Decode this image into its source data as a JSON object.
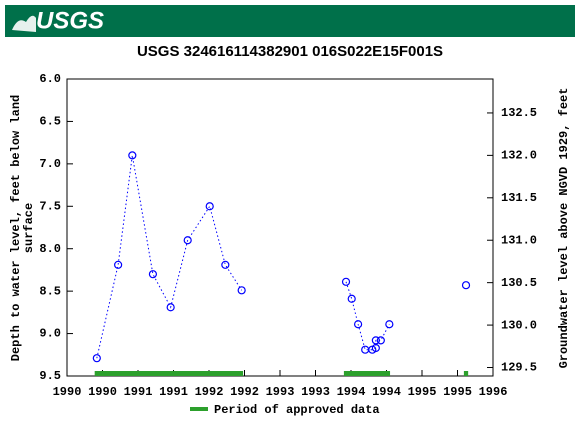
{
  "header": {
    "logo": "USGS"
  },
  "chart_data": {
    "type": "line",
    "title": "USGS 324616114382901 016S022E15F001S",
    "ylabel": [
      "Depth to water level, feet below land",
      "surface"
    ],
    "y2label": "Groundwater level above NGVD 1929, feet",
    "xlim": [
      1990,
      1996
    ],
    "xticks": [
      {
        "value": 1990,
        "label": "1990"
      },
      {
        "value": 1990.5,
        "label": "1990"
      },
      {
        "value": 1991,
        "label": "1991"
      },
      {
        "value": 1991.5,
        "label": "1991"
      },
      {
        "value": 1992,
        "label": "1992"
      },
      {
        "value": 1992.5,
        "label": "1992"
      },
      {
        "value": 1993,
        "label": "1993"
      },
      {
        "value": 1993.5,
        "label": "1993"
      },
      {
        "value": 1994,
        "label": "1994"
      },
      {
        "value": 1994.5,
        "label": "1994"
      },
      {
        "value": 1995,
        "label": "1995"
      },
      {
        "value": 1995.5,
        "label": "1995"
      },
      {
        "value": 1996,
        "label": "1996"
      }
    ],
    "ylim": [
      6,
      9.5
    ],
    "yticks": [
      {
        "value": 6,
        "label": "6.0"
      },
      6.5,
      {
        "value": 7,
        "label": "7.0"
      },
      7.5,
      {
        "value": 8,
        "label": "8.0"
      },
      8.5,
      {
        "value": 9,
        "label": "9.0"
      },
      9.5
    ],
    "y2lim": [
      132.9,
      129.4
    ],
    "y2ticks": [
      132.5,
      {
        "value": 132,
        "label": "132.0"
      },
      131.5,
      {
        "value": 131,
        "label": "131.0"
      },
      130.5,
      {
        "value": 130,
        "label": "130.0"
      },
      129.5
    ],
    "series": [
      {
        "color": "#0000ff",
        "x": [
          1990.42,
          1990.72,
          1990.92,
          1991.21,
          1991.46,
          1991.7,
          1992.01,
          1992.23,
          1992.46,
          null,
          1993.93,
          1994.01,
          1994.1,
          1994.2,
          1994.3,
          1994.35,
          1994.35,
          1994.42,
          1994.54,
          null,
          1995.62
        ],
        "values": [
          9.29,
          8.19,
          6.9,
          8.3,
          8.69,
          7.9,
          7.5,
          8.19,
          8.49,
          null,
          8.39,
          8.59,
          8.89,
          9.19,
          9.19,
          9.17,
          9.08,
          9.08,
          8.89,
          null,
          8.43
        ]
      }
    ],
    "approved_periods": [
      [
        1990.39,
        1992.48
      ],
      [
        1993.9,
        1994.55
      ],
      [
        1995.59,
        1995.65
      ]
    ],
    "approved_color": "#2ca02c",
    "legend": "Period of approved data"
  }
}
